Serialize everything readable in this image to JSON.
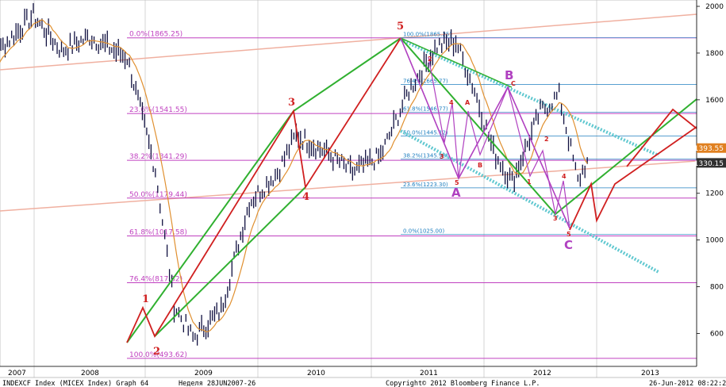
{
  "chart_data": {
    "type": "line",
    "title": "",
    "xlabel": "",
    "ylabel": "",
    "ylim": [
      500,
      2000
    ],
    "x_tick_labels": [
      "2007",
      "2008",
      "2009",
      "2010",
      "2011",
      "2012",
      "2013"
    ],
    "y_tick_labels": [
      "600",
      "800",
      "1000",
      "1200",
      "1400",
      "1600",
      "1800",
      "2000"
    ],
    "grid": false,
    "fib_levels": [
      {
        "label": "0.0%(1865.25)",
        "value": 1865.25
      },
      {
        "label": "23.6%(1541.55)",
        "value": 1541.55
      },
      {
        "label": "38.2%(1341.29)",
        "value": 1341.29
      },
      {
        "label": "50.0%(1179.44)",
        "value": 1179.44
      },
      {
        "label": "61.8%(1017.58)",
        "value": 1017.58
      },
      {
        "label": "76.4%(817.32)",
        "value": 817.32
      },
      {
        "label": "100.0%(493.62)",
        "value": 493.62
      }
    ],
    "fib_levels_2": [
      {
        "label": "100.0%(1865.25)",
        "value": 1865.25
      },
      {
        "label": "76.4%(1665.77)",
        "value": 1665.77
      },
      {
        "label": "61.8%(1546.77)",
        "value": 1546.77
      },
      {
        "label": "50.0%(1445.12)",
        "value": 1445.12
      },
      {
        "label": "38.2%(1345.98)",
        "value": 1345.98
      },
      {
        "label": "23.6%(1223.30)",
        "value": 1223.3
      },
      {
        "label": "0.0%(1025.00)",
        "value": 1025.0
      }
    ],
    "last_prices": [
      {
        "label": "1393.55",
        "value": 1393.55,
        "color": "#e08020"
      },
      {
        "label": "1330.15",
        "value": 1330.15,
        "color": "#303030"
      }
    ],
    "price_series": {
      "x": [
        "2007-01",
        "2007-04",
        "2007-07",
        "2007-10",
        "2008-01",
        "2008-05",
        "2008-08",
        "2008-10",
        "2008-12",
        "2009-03",
        "2009-06",
        "2009-09",
        "2009-11",
        "2010-02",
        "2010-05",
        "2010-08",
        "2010-11",
        "2011-02",
        "2011-04",
        "2011-06",
        "2011-08",
        "2011-10",
        "2012-01",
        "2012-03",
        "2012-05",
        "2012-06"
      ],
      "y": [
        1690,
        1840,
        1960,
        1810,
        1870,
        1780,
        1300,
        720,
        580,
        700,
        1160,
        1290,
        1450,
        1380,
        1290,
        1360,
        1640,
        1830,
        1850,
        1640,
        1380,
        1250,
        1550,
        1620,
        1250,
        1340
      ]
    },
    "wave_labels_primary": [
      "1",
      "2",
      "3",
      "4",
      "5"
    ],
    "wave_labels_abc": [
      "A",
      "B",
      "C"
    ],
    "wave_labels_sub": [
      "1",
      "2",
      "3",
      "4",
      "5",
      "A",
      "B",
      "C",
      "1",
      "2",
      "3",
      "4",
      "5"
    ]
  },
  "footer": {
    "left": "INDEXCF Index (MICEX Index) Graph 64",
    "center": "Неделя 28JUN2007-26",
    "copyright": "Copyright© 2012 Bloomberg Finance L.P.",
    "right": "26-Jun-2012 08:22:22"
  },
  "colors": {
    "fib": "#c040c0",
    "fib2": "#2080c0",
    "wave_red": "#d02020",
    "wave_green": "#30b030",
    "channel": "#60c8d0",
    "trend": "#f0b0a0",
    "ma": "#e09030",
    "abc": "#b040c0"
  }
}
